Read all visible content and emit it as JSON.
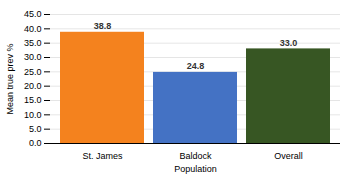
{
  "chart_data": {
    "type": "bar",
    "categories": [
      "St. James",
      "Baldock",
      "Overall"
    ],
    "values": [
      38.8,
      24.8,
      33.0
    ],
    "value_labels": [
      "38.8",
      "24.8",
      "33.0"
    ],
    "colors": [
      "#F4821E",
      "#4472C4",
      "#375623"
    ],
    "xlabel": "Population",
    "ylabel": "Mean true prev %",
    "ylim": [
      0,
      45
    ],
    "yticks": [
      {
        "value": 0,
        "label": "0.0"
      },
      {
        "value": 5,
        "label": "5.0"
      },
      {
        "value": 10,
        "label": "10.0"
      },
      {
        "value": 15,
        "label": "15.0"
      },
      {
        "value": 20,
        "label": "20.0"
      },
      {
        "value": 25,
        "label": "25.0"
      },
      {
        "value": 30,
        "label": "30.0"
      },
      {
        "value": 35,
        "label": "35.0"
      },
      {
        "value": 40,
        "label": "40.0"
      },
      {
        "value": 45,
        "label": "45.0"
      }
    ],
    "grid": true,
    "data_labels": true
  }
}
